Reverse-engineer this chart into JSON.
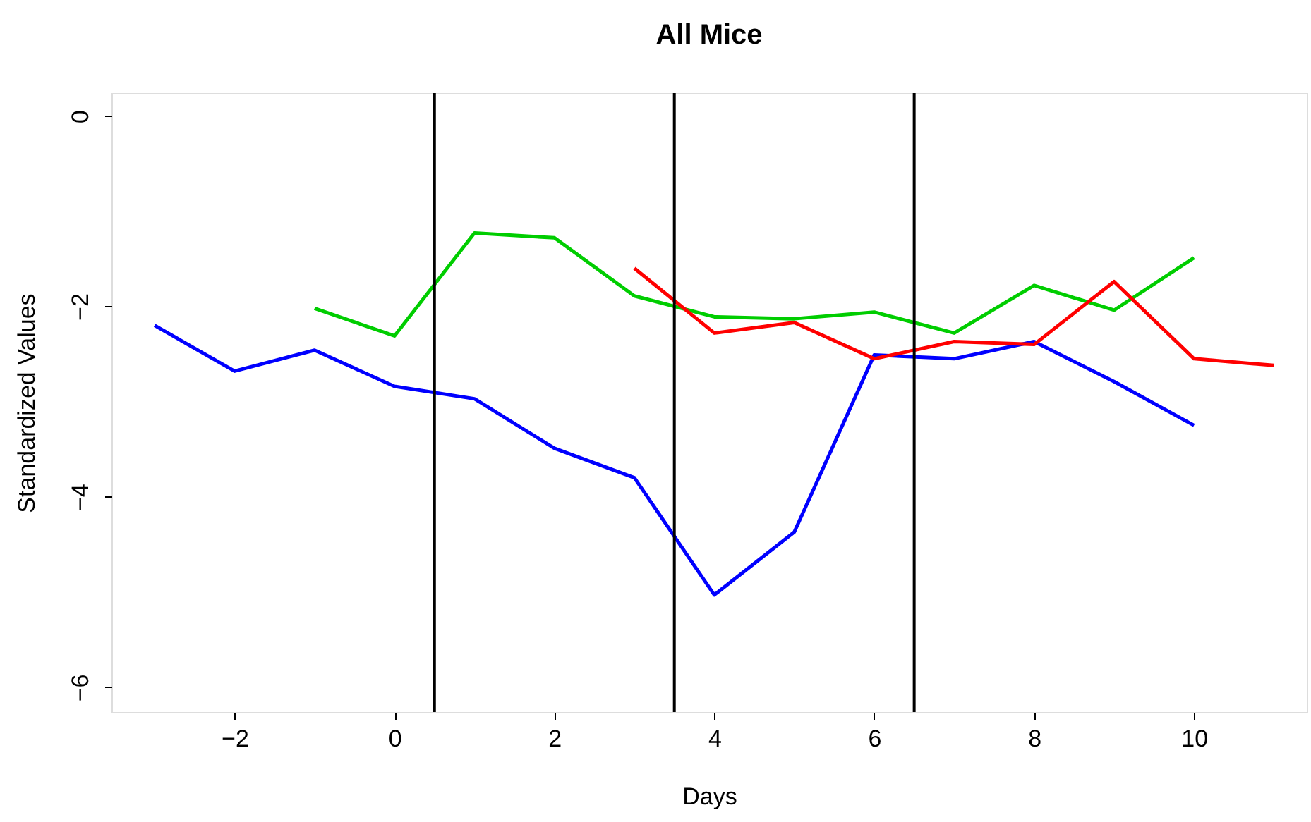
{
  "chart_data": {
    "type": "line",
    "title": "All Mice",
    "xlabel": "Days",
    "ylabel": "Standardized Values",
    "series": [
      {
        "color": "#0000ff",
        "x": [
          -3,
          -2,
          -1,
          0,
          1,
          2,
          3,
          4,
          5,
          6,
          7,
          8,
          9,
          10
        ],
        "values": [
          -2.2,
          -2.68,
          -2.46,
          -2.84,
          -2.97,
          -3.49,
          -3.8,
          -5.03,
          -4.37,
          -2.51,
          -2.55,
          -2.37,
          -2.79,
          -3.25
        ]
      },
      {
        "color": "#00cd00",
        "x": [
          -1,
          0,
          1,
          2,
          3,
          4,
          5,
          6,
          7,
          8,
          9,
          10
        ],
        "values": [
          -2.02,
          -2.31,
          -1.23,
          -1.28,
          -1.89,
          -2.11,
          -2.13,
          -2.06,
          -2.28,
          -1.78,
          -2.04,
          -1.49
        ]
      },
      {
        "color": "#ff0000",
        "x": [
          3,
          4,
          5,
          6,
          7,
          8,
          9,
          10,
          11
        ],
        "values": [
          -1.6,
          -2.28,
          -2.17,
          -2.55,
          -2.37,
          -2.4,
          -1.74,
          -2.55,
          -2.62
        ]
      }
    ],
    "xlim": [
      -3.54,
      11.41
    ],
    "ylim": [
      -6.26,
      0.24
    ],
    "xticks": [
      -2,
      0,
      2,
      4,
      6,
      8,
      10
    ],
    "yticks": [
      -6,
      -4,
      -2,
      0
    ],
    "ref_lines": [
      {
        "axis": "x",
        "value": 0.5,
        "color": "#000000"
      },
      {
        "axis": "x",
        "value": 3.5,
        "color": "#000000"
      },
      {
        "axis": "x",
        "value": 6.5,
        "color": "#000000"
      }
    ],
    "grid": false,
    "legend": false,
    "marker": "none",
    "line_style": "solid"
  }
}
